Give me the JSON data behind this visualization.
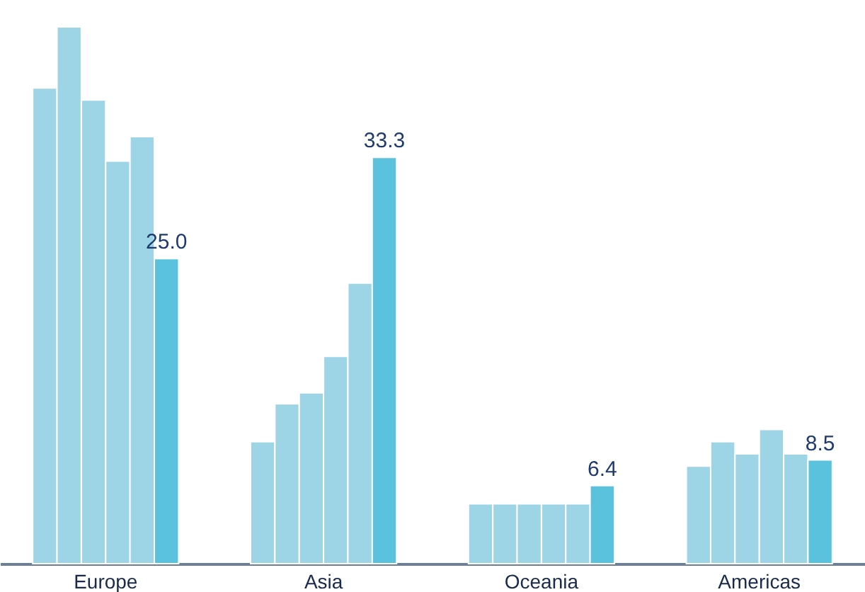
{
  "chart_data": {
    "type": "bar",
    "categories": [
      "Europe",
      "Asia",
      "Oceania",
      "Americas"
    ],
    "series": [
      {
        "color": "#9dd5e6",
        "values": [
          39.0,
          10.0,
          4.9,
          8.0
        ]
      },
      {
        "color": "#9dd5e6",
        "values": [
          44.0,
          13.1,
          4.9,
          10.0
        ]
      },
      {
        "color": "#9dd5e6",
        "values": [
          38.0,
          14.0,
          4.9,
          9.0
        ]
      },
      {
        "color": "#9dd5e6",
        "values": [
          33.0,
          17.0,
          4.9,
          11.0
        ]
      },
      {
        "color": "#9dd5e6",
        "values": [
          35.0,
          23.0,
          4.9,
          9.0
        ]
      },
      {
        "color": "#5bc2de",
        "values": [
          25.0,
          33.3,
          6.4,
          8.5
        ],
        "value_labels": [
          "25.0",
          "33.3",
          "6.4",
          "8.5"
        ]
      }
    ],
    "grid": false
  }
}
